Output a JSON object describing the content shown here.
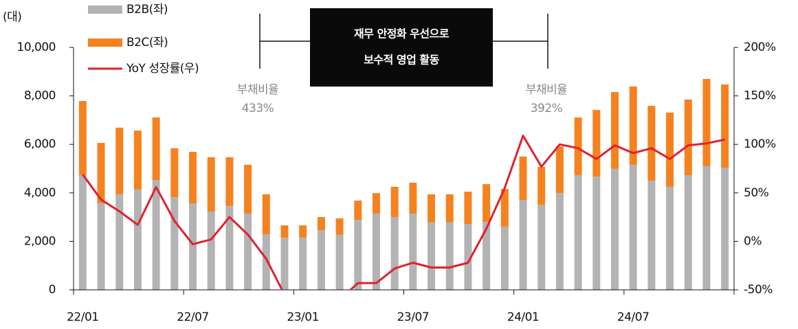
{
  "chart_data": {
    "type": "bar_line",
    "y_unit": "(대)",
    "categories": [
      "22/01",
      null,
      null,
      null,
      null,
      null,
      "22/07",
      null,
      null,
      null,
      null,
      null,
      "23/01",
      null,
      null,
      null,
      null,
      null,
      "23/07",
      null,
      null,
      null,
      null,
      null,
      "24/01",
      null,
      null,
      null,
      null,
      null,
      "24/07",
      null,
      null,
      null,
      null,
      null
    ],
    "series": [
      {
        "name": "B2B(좌)",
        "color": "#b3b3b3",
        "values": [
          4730,
          3570,
          3940,
          4140,
          4530,
          3820,
          3570,
          3230,
          3460,
          3140,
          2290,
          2150,
          2150,
          2460,
          2270,
          2890,
          3140,
          3000,
          3140,
          2780,
          2780,
          2720,
          2800,
          2610,
          3710,
          3510,
          3990,
          4730,
          4670,
          4990,
          5160,
          4500,
          4250,
          4730,
          5100,
          5040
        ]
      },
      {
        "name": "B2C(좌)",
        "color": "#f5821f",
        "values": [
          3060,
          2490,
          2750,
          2430,
          2580,
          2020,
          2120,
          2240,
          2010,
          2020,
          1650,
          510,
          510,
          540,
          680,
          790,
          850,
          1250,
          1280,
          1160,
          1160,
          1330,
          1560,
          1550,
          1790,
          1560,
          1930,
          2380,
          2750,
          3170,
          3230,
          3090,
          3060,
          3120,
          3600,
          3430
        ]
      },
      {
        "name": "YoY 성장률(우)",
        "color": "#e0202e",
        "axis": "y2",
        "values": [
          69,
          43,
          31,
          17,
          56,
          21,
          -3,
          2,
          25,
          7,
          -18,
          -55,
          -65,
          -65,
          -60,
          -43,
          -43,
          -28,
          -22,
          -27,
          -27,
          -22,
          13,
          55,
          109,
          77,
          100,
          96,
          85,
          99,
          91,
          96,
          85,
          99,
          101,
          105
        ]
      }
    ],
    "ylim": [
      0,
      10000
    ],
    "yticks": [
      0,
      {
        "value": 2000,
        "label": "2,000"
      },
      {
        "value": 4000,
        "label": "4,000"
      },
      {
        "value": 6000,
        "label": "6,000"
      },
      {
        "value": 8000,
        "label": "8,000"
      },
      {
        "value": 10000,
        "label": "10,000"
      }
    ],
    "y2lim": [
      -50,
      200
    ],
    "y2ticks": [
      {
        "value": -50,
        "label": "-50%"
      },
      {
        "value": 0,
        "label": "0%"
      },
      {
        "value": 50,
        "label": "50%"
      },
      {
        "value": 100,
        "label": "100%"
      },
      {
        "value": 150,
        "label": "150%"
      },
      {
        "value": 200,
        "label": "200%"
      }
    ],
    "annotations": {
      "box": [
        "재무 안정화 우선으로",
        "보수적 영업 활동"
      ],
      "debt": [
        {
          "label": "부채비율",
          "value": "433%"
        },
        {
          "label": "부채비율",
          "value": "392%"
        }
      ]
    }
  }
}
